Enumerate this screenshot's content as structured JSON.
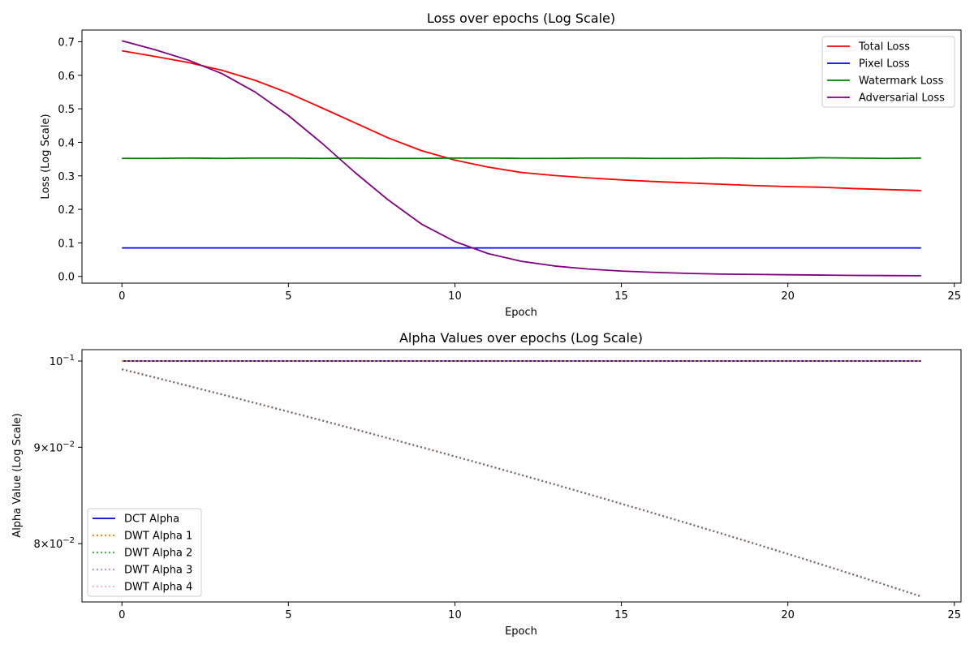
{
  "chart_data": [
    {
      "type": "line",
      "title": "Loss over epochs (Log Scale)",
      "xlabel": "Epoch",
      "ylabel": "Loss (Log Scale)",
      "xlim": [
        -1.2,
        25.2
      ],
      "ylim": [
        -0.02,
        0.735
      ],
      "xticks": [
        0,
        5,
        10,
        15,
        20,
        25
      ],
      "xtick_labels": [
        "0",
        "5",
        "10",
        "15",
        "20",
        "25"
      ],
      "yticks": [
        0.0,
        0.1,
        0.2,
        0.3,
        0.4,
        0.5,
        0.6,
        0.7
      ],
      "ytick_labels": [
        "0.0",
        "0.1",
        "0.2",
        "0.3",
        "0.4",
        "0.5",
        "0.6",
        "0.7"
      ],
      "grid": false,
      "legend_position": "top-right",
      "x": [
        0,
        1,
        2,
        3,
        4,
        5,
        6,
        7,
        8,
        9,
        10,
        11,
        12,
        13,
        14,
        15,
        16,
        17,
        18,
        19,
        20,
        21,
        22,
        23,
        24
      ],
      "series": [
        {
          "name": "Total Loss",
          "color": "#ff0000",
          "style": "solid",
          "values": [
            0.673,
            0.656,
            0.638,
            0.615,
            0.585,
            0.547,
            0.503,
            0.458,
            0.413,
            0.375,
            0.347,
            0.326,
            0.31,
            0.301,
            0.294,
            0.288,
            0.283,
            0.279,
            0.275,
            0.271,
            0.268,
            0.266,
            0.262,
            0.259,
            0.256
          ]
        },
        {
          "name": "Pixel Loss",
          "color": "#0000ff",
          "style": "solid",
          "values": [
            0.085,
            0.085,
            0.085,
            0.085,
            0.085,
            0.085,
            0.085,
            0.085,
            0.085,
            0.085,
            0.085,
            0.085,
            0.085,
            0.085,
            0.085,
            0.085,
            0.085,
            0.085,
            0.085,
            0.085,
            0.085,
            0.085,
            0.085,
            0.085,
            0.085
          ]
        },
        {
          "name": "Watermark Loss",
          "color": "#008000",
          "style": "solid",
          "values": [
            0.352,
            0.352,
            0.353,
            0.352,
            0.353,
            0.353,
            0.352,
            0.353,
            0.352,
            0.352,
            0.353,
            0.353,
            0.352,
            0.352,
            0.353,
            0.353,
            0.352,
            0.352,
            0.353,
            0.352,
            0.352,
            0.354,
            0.353,
            0.352,
            0.353
          ]
        },
        {
          "name": "Adversarial Loss",
          "color": "#800080",
          "style": "solid",
          "values": [
            0.703,
            0.676,
            0.645,
            0.605,
            0.55,
            0.48,
            0.398,
            0.31,
            0.228,
            0.156,
            0.104,
            0.068,
            0.045,
            0.031,
            0.022,
            0.016,
            0.012,
            0.009,
            0.007,
            0.006,
            0.005,
            0.004,
            0.003,
            0.0025,
            0.002
          ]
        }
      ]
    },
    {
      "type": "line",
      "title": "Alpha Values over epochs (Log Scale)",
      "xlabel": "Epoch",
      "ylabel": "Alpha Value (Log Scale)",
      "yscale": "log",
      "xlim": [
        -1.2,
        25.2
      ],
      "ylim": [
        0.0745,
        0.1014
      ],
      "xticks": [
        0,
        5,
        10,
        15,
        20,
        25
      ],
      "xtick_labels": [
        "0",
        "5",
        "10",
        "15",
        "20",
        "25"
      ],
      "yticks": [
        0.08,
        0.09,
        0.1
      ],
      "ytick_labels": [
        {
          "base": "8×10",
          "exp": "−2"
        },
        {
          "base": "9×10",
          "exp": "−2"
        },
        {
          "base": "10",
          "exp": "−1"
        }
      ],
      "grid": false,
      "legend_position": "bottom-left",
      "x": [
        0,
        1,
        2,
        3,
        4,
        5,
        6,
        7,
        8,
        9,
        10,
        11,
        12,
        13,
        14,
        15,
        16,
        17,
        18,
        19,
        20,
        21,
        22,
        23,
        24
      ],
      "series": [
        {
          "name": "DCT Alpha",
          "color": "#0000cc",
          "style": "solid",
          "values": [
            0.1,
            0.1,
            0.1,
            0.1,
            0.1,
            0.1,
            0.1,
            0.1,
            0.1,
            0.1,
            0.1,
            0.1,
            0.1,
            0.1,
            0.1,
            0.1,
            0.1,
            0.1,
            0.1,
            0.1,
            0.1,
            0.1,
            0.1,
            0.1,
            0.1
          ]
        },
        {
          "name": "DWT Alpha 1",
          "color": "#ff8c00",
          "style": "dotted",
          "values": [
            0.1,
            0.1,
            0.1,
            0.1,
            0.1,
            0.1,
            0.1,
            0.1,
            0.1,
            0.1,
            0.1,
            0.1,
            0.1,
            0.1,
            0.1,
            0.1,
            0.1,
            0.1,
            0.1,
            0.1,
            0.1,
            0.1,
            0.1,
            0.1,
            0.1
          ]
        },
        {
          "name": "DWT Alpha 2",
          "color": "#4caf50",
          "style": "dotted",
          "values": [
            0.099,
            0.098,
            0.097,
            0.096,
            0.095,
            0.094,
            0.093,
            0.092,
            0.091,
            0.09,
            0.089,
            0.088,
            0.087,
            0.086,
            0.085,
            0.084,
            0.083,
            0.082,
            0.081,
            0.08,
            0.079,
            0.078,
            0.077,
            0.076,
            0.075
          ]
        },
        {
          "name": "DWT Alpha 3",
          "color": "#b39ddb",
          "style": "dotted",
          "values": [
            0.099,
            0.098,
            0.097,
            0.096,
            0.095,
            0.094,
            0.093,
            0.092,
            0.091,
            0.09,
            0.089,
            0.088,
            0.087,
            0.086,
            0.085,
            0.084,
            0.083,
            0.082,
            0.081,
            0.08,
            0.079,
            0.078,
            0.077,
            0.076,
            0.075
          ]
        },
        {
          "name": "DWT Alpha 4",
          "color": "#f8bbd0",
          "style": "dotted",
          "values": [
            0.099,
            0.098,
            0.097,
            0.096,
            0.095,
            0.094,
            0.093,
            0.092,
            0.091,
            0.09,
            0.089,
            0.088,
            0.087,
            0.086,
            0.085,
            0.084,
            0.083,
            0.082,
            0.081,
            0.08,
            0.079,
            0.078,
            0.077,
            0.076,
            0.075
          ]
        },
        {
          "name": "",
          "color": "#7d6b6b",
          "style": "dotted",
          "legend": false,
          "values": [
            0.099,
            0.098,
            0.097,
            0.096,
            0.095,
            0.094,
            0.093,
            0.092,
            0.091,
            0.09,
            0.089,
            0.088,
            0.087,
            0.086,
            0.085,
            0.084,
            0.083,
            0.082,
            0.081,
            0.08,
            0.079,
            0.078,
            0.077,
            0.076,
            0.075
          ]
        }
      ]
    }
  ]
}
